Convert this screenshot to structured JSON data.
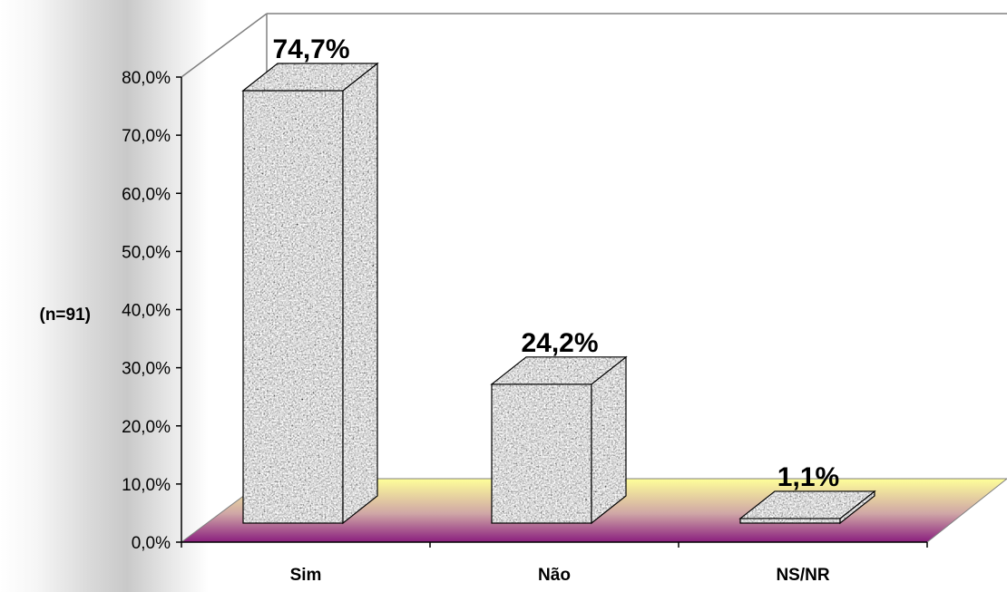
{
  "chart_data": {
    "type": "bar",
    "categories": [
      "Sim",
      "Não",
      "NS/NR"
    ],
    "values": [
      74.7,
      24.2,
      1.1
    ],
    "value_labels": [
      "74,7%",
      "24,2%",
      "1,1%"
    ],
    "ylim": [
      0,
      80
    ],
    "yticks": [
      "0,0%",
      "10,0%",
      "20,0%",
      "30,0%",
      "40,0%",
      "50,0%",
      "60,0%",
      "70,0%",
      "80,0%"
    ],
    "ylabel": "(n=91)",
    "grid": false,
    "style": "3d-column",
    "bar_color": "#a8a8a8",
    "floor_color_front": "#8a1e7e",
    "floor_color_back": "#ffff99"
  }
}
